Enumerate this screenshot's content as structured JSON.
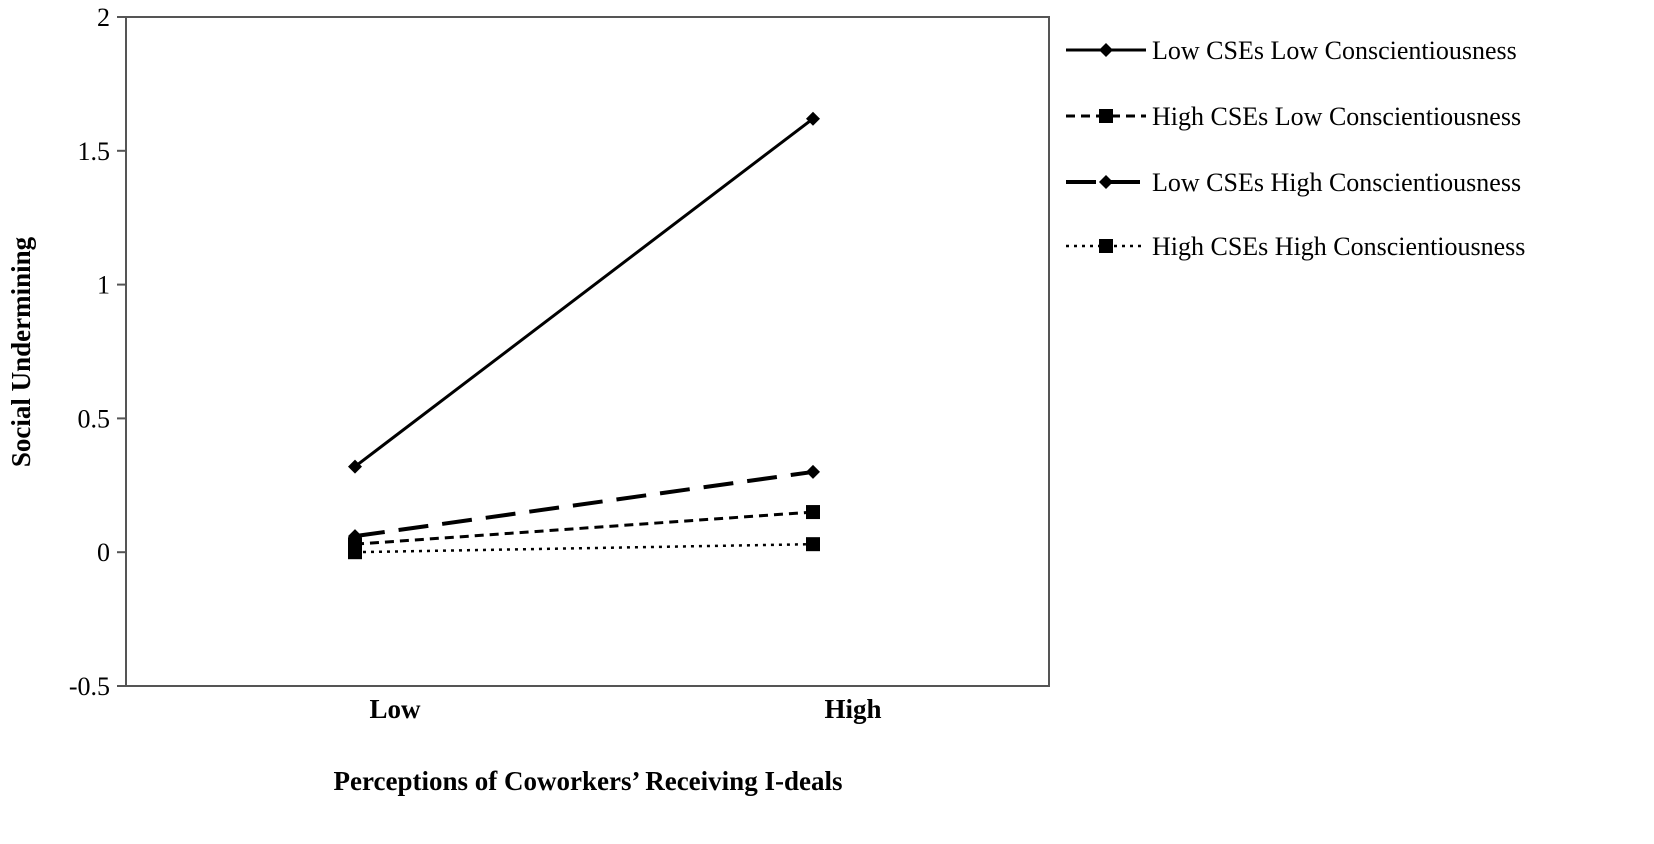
{
  "chart_data": {
    "type": "line",
    "title": "",
    "xlabel": "Perceptions of  Coworkers’ Receiving I-deals",
    "ylabel": "Social Undermining",
    "categories": [
      "Low",
      "High"
    ],
    "ylim": [
      -0.5,
      2
    ],
    "yticks": [
      "-0.5",
      "0",
      "0.5",
      "1",
      "1.5",
      "2"
    ],
    "grid": false,
    "legend_position": "right",
    "series": [
      {
        "name": "Low CSEs Low Conscientiousness",
        "values": [
          0.32,
          1.62
        ],
        "line_style": "solid",
        "marker": "diamond",
        "color": "#000000"
      },
      {
        "name": "High CSEs Low Conscientiousness",
        "values": [
          0.03,
          0.15
        ],
        "line_style": "short-dash",
        "marker": "square",
        "color": "#000000"
      },
      {
        "name": "Low CSEs High Conscientiousness",
        "values": [
          0.06,
          0.3
        ],
        "line_style": "long-dash",
        "marker": "diamond",
        "color": "#000000"
      },
      {
        "name": "High CSEs High Conscientiousness",
        "values": [
          0.0,
          0.03
        ],
        "line_style": "dotted",
        "marker": "square",
        "color": "#000000"
      }
    ]
  }
}
